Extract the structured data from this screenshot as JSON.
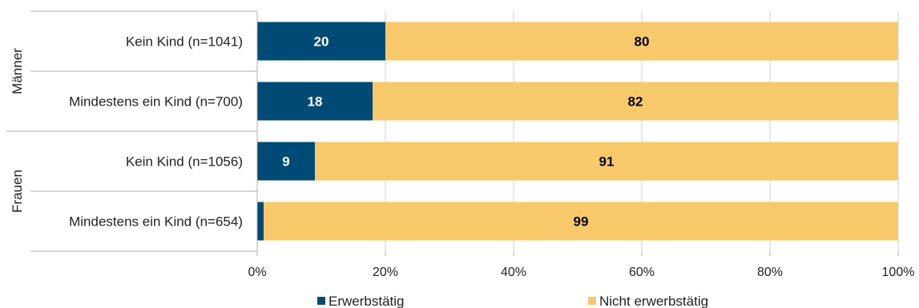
{
  "chart_data": {
    "type": "bar",
    "orientation": "horizontal",
    "stacked": true,
    "groups": [
      {
        "name": "Männer",
        "categories": [
          "Kein Kind (n=1041)",
          "Mindestens ein Kind (n=700)"
        ]
      },
      {
        "name": "Frauen",
        "categories": [
          "Kein Kind (n=1056)",
          "Mindestens ein Kind (n=654)"
        ]
      }
    ],
    "categories": [
      "Kein Kind (n=1041)",
      "Mindestens ein Kind (n=700)",
      "Kein Kind (n=1056)",
      "Mindestens ein Kind (n=654)"
    ],
    "series": [
      {
        "name": "Erwerbstätig",
        "values": [
          20,
          18,
          9,
          1
        ],
        "color": "#004b76"
      },
      {
        "name": "Nicht erwerbstätig",
        "values": [
          80,
          82,
          91,
          99
        ],
        "color": "#f7c96a"
      }
    ],
    "xlim": [
      0,
      100
    ],
    "x_ticks": [
      "0%",
      "20%",
      "40%",
      "60%",
      "80%",
      "100%"
    ],
    "grid": true,
    "legend_position": "bottom"
  }
}
